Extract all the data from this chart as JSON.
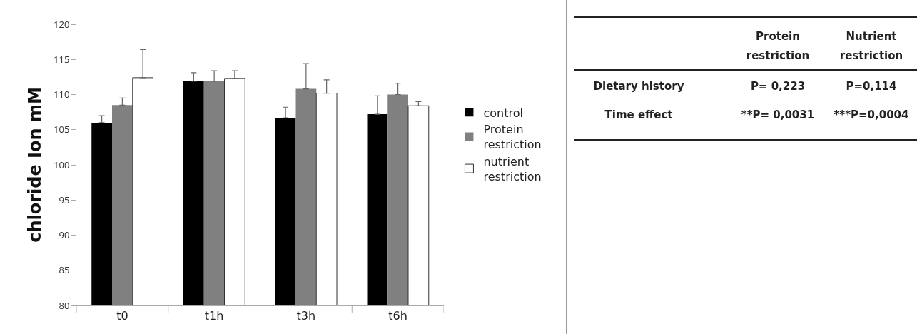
{
  "chart_data": [
    {
      "type": "bar",
      "ylabel": "chloride Ion mM",
      "categories": [
        "t0",
        "t1h",
        "t3h",
        "t6h"
      ],
      "ylim": [
        80,
        120
      ],
      "yticks": [
        80,
        85,
        90,
        95,
        100,
        105,
        110,
        115,
        120
      ],
      "grid": false,
      "legend": "right",
      "series": [
        {
          "name": "control",
          "color": "#000000",
          "values": [
            106.0,
            111.9,
            106.7,
            107.2
          ],
          "errors": [
            [
              106.0,
              107.0
            ],
            [
              111.9,
              113.1
            ],
            [
              106.7,
              108.2
            ],
            [
              107.2,
              109.8
            ]
          ]
        },
        {
          "name": "Protein restriction",
          "color": "#808080",
          "values": [
            108.5,
            111.9,
            110.8,
            110.0
          ],
          "errors": [
            [
              108.5,
              109.5
            ],
            [
              111.9,
              113.4
            ],
            [
              110.8,
              114.4
            ],
            [
              110.0,
              111.6
            ]
          ]
        },
        {
          "name": "nutrient restriction",
          "color": "#ffffff",
          "values": [
            112.4,
            112.3,
            110.2,
            108.4
          ],
          "errors": [
            [
              112.4,
              116.4
            ],
            [
              112.3,
              113.4
            ],
            [
              110.2,
              112.1
            ],
            [
              108.4,
              109.0
            ]
          ]
        }
      ]
    },
    {
      "type": "other",
      "annotations": [
        "Protein restriction",
        "Nutrient restriction",
        "Dietary history",
        "P= 0,223",
        "P=0,114",
        "Time effect",
        "**P= 0,0031",
        "***P=0,0004"
      ]
    }
  ]
}
